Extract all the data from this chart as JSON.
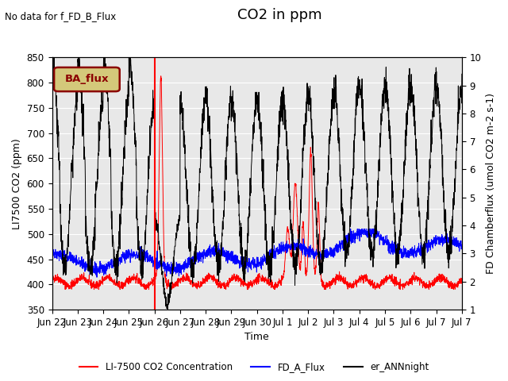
{
  "title": "CO2 in ppm",
  "top_left_text": "No data for f_FD_B_Flux",
  "xlabel": "Time",
  "ylabel_left": "LI7500 CO2 (ppm)",
  "ylabel_right": "FD Chamberflux (umol CO2 m-2 s-1)",
  "ylim_left": [
    350,
    850
  ],
  "ylim_right": [
    1.0,
    10.0
  ],
  "x_tick_labels": [
    "Jun 22",
    "Jun 23",
    "Jun 24",
    "Jun 25",
    "Jun 26",
    "Jun 27",
    "Jun 28",
    "Jun 29",
    "Jun 30",
    "Jul 1",
    "Jul 2",
    "Jul 3",
    "Jul 4",
    "Jul 5",
    "Jul 6",
    "Jul 7",
    "Jul 7"
  ],
  "vline_x": 4.0,
  "ba_flux_label": "BA_flux",
  "legend_labels": [
    "LI-7500 CO2 Concentration",
    "FD_A_Flux",
    "er_ANNnight"
  ],
  "legend_colors": [
    "red",
    "blue",
    "black"
  ],
  "bg_color": "#e8e8e8",
  "title_fontsize": 13,
  "label_fontsize": 9,
  "tick_fontsize": 8.5
}
